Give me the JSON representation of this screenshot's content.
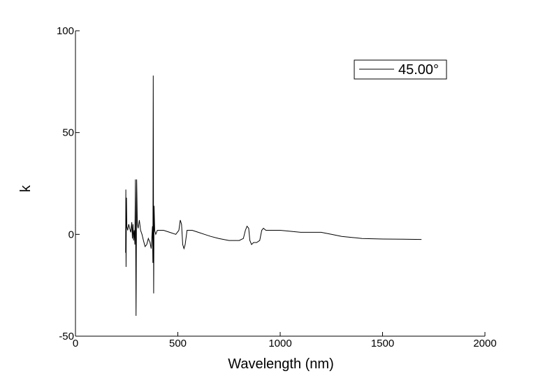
{
  "chart_data": {
    "type": "line",
    "xlabel": "Wavelength (nm)",
    "ylabel": "k",
    "xlim": [
      0,
      2000
    ],
    "ylim": [
      -50,
      100
    ],
    "x_ticks": [
      0,
      500,
      1000,
      1500,
      2000
    ],
    "y_ticks": [
      -50,
      0,
      50,
      100
    ],
    "x_tick_labels": [
      "0",
      "500",
      "1000",
      "1500",
      "2000"
    ],
    "y_tick_labels": [
      "-50",
      "0",
      "50",
      "100"
    ],
    "grid": false,
    "legend_position": "top-right",
    "series": [
      {
        "name": "45.00°",
        "color": "#000000",
        "points": [
          [
            245,
            -9
          ],
          [
            246,
            22
          ],
          [
            247,
            -16
          ],
          [
            249,
            18
          ],
          [
            251,
            4
          ],
          [
            255,
            2
          ],
          [
            260,
            5
          ],
          [
            265,
            3
          ],
          [
            270,
            1
          ],
          [
            275,
            6
          ],
          [
            278,
            -2
          ],
          [
            281,
            5
          ],
          [
            284,
            -3
          ],
          [
            287,
            2
          ],
          [
            290,
            -5
          ],
          [
            293,
            27
          ],
          [
            296,
            -40
          ],
          [
            299,
            27
          ],
          [
            302,
            5
          ],
          [
            306,
            3
          ],
          [
            312,
            7
          ],
          [
            318,
            2
          ],
          [
            325,
            0
          ],
          [
            332,
            -3
          ],
          [
            340,
            -6
          ],
          [
            348,
            -5
          ],
          [
            356,
            -2
          ],
          [
            364,
            -4
          ],
          [
            370,
            -7
          ],
          [
            376,
            4
          ],
          [
            378,
            -14
          ],
          [
            380,
            78
          ],
          [
            382,
            -29
          ],
          [
            384,
            14
          ],
          [
            387,
            2
          ],
          [
            392,
            0
          ],
          [
            400,
            2
          ],
          [
            430,
            2
          ],
          [
            460,
            1
          ],
          [
            490,
            0
          ],
          [
            505,
            2
          ],
          [
            512,
            7
          ],
          [
            518,
            5
          ],
          [
            524,
            -5
          ],
          [
            530,
            -7
          ],
          [
            536,
            -5
          ],
          [
            545,
            2
          ],
          [
            570,
            2
          ],
          [
            600,
            1
          ],
          [
            630,
            0
          ],
          [
            660,
            -1
          ],
          [
            700,
            -2
          ],
          [
            750,
            -3
          ],
          [
            800,
            -3
          ],
          [
            820,
            -2
          ],
          [
            830,
            2
          ],
          [
            838,
            4
          ],
          [
            846,
            3
          ],
          [
            852,
            -3
          ],
          [
            860,
            -5
          ],
          [
            870,
            -4
          ],
          [
            885,
            -4
          ],
          [
            900,
            -3
          ],
          [
            910,
            2
          ],
          [
            918,
            3
          ],
          [
            930,
            2
          ],
          [
            1000,
            2
          ],
          [
            1100,
            1
          ],
          [
            1200,
            1
          ],
          [
            1250,
            0
          ],
          [
            1300,
            -1
          ],
          [
            1350,
            -1.5
          ],
          [
            1400,
            -2
          ],
          [
            1500,
            -2.3
          ],
          [
            1600,
            -2.4
          ],
          [
            1690,
            -2.5
          ]
        ]
      }
    ]
  }
}
